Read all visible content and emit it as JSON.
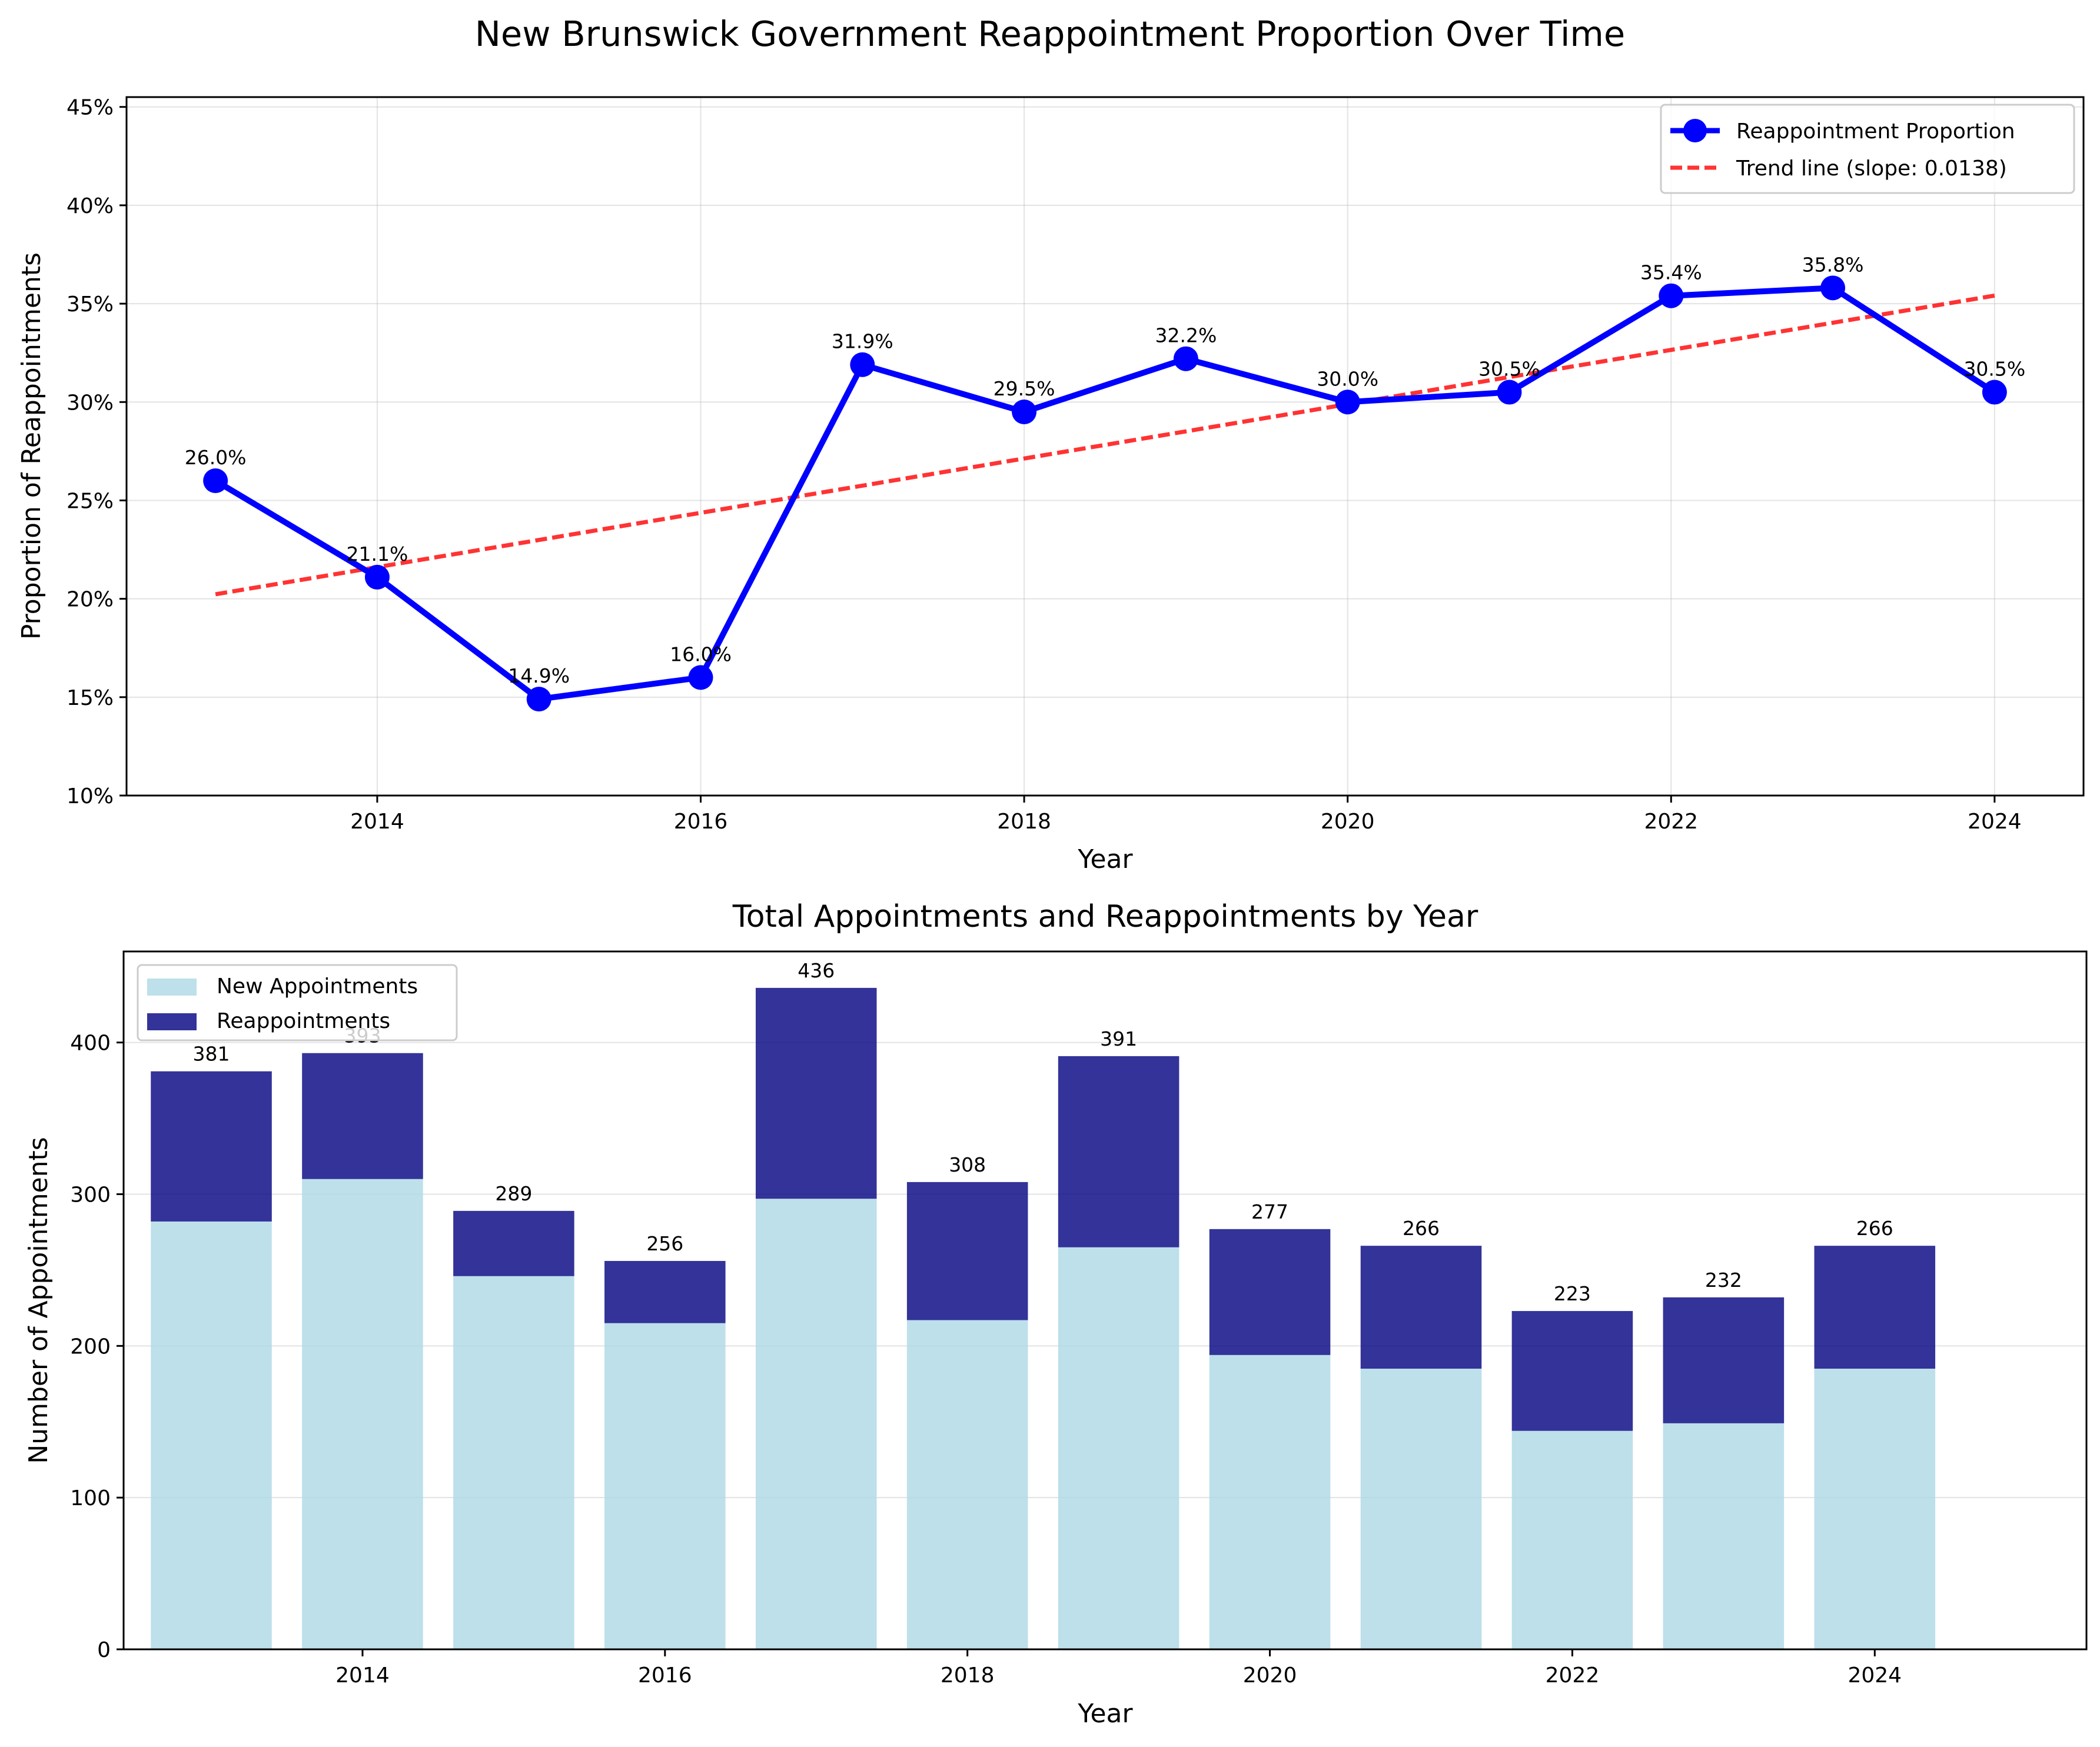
{
  "figure_title": "New Brunswick Government Reappointment Proportion Over Time",
  "chart_data": [
    {
      "type": "line",
      "title": "",
      "xlabel": "Year",
      "ylabel": "Proportion of Reappointments",
      "x": [
        2013,
        2014,
        2015,
        2016,
        2017,
        2018,
        2019,
        2020,
        2021,
        2022,
        2023,
        2024
      ],
      "xlim": [
        2012.45,
        2024.55
      ],
      "ylim": [
        0.1,
        0.455
      ],
      "xticks": [
        2014,
        2016,
        2018,
        2020,
        2022,
        2024
      ],
      "yticks": [
        0.1,
        0.15,
        0.2,
        0.25,
        0.3,
        0.35,
        0.4,
        0.45
      ],
      "ytick_labels": [
        "10%",
        "15%",
        "20%",
        "25%",
        "30%",
        "35%",
        "40%",
        "45%"
      ],
      "grid": true,
      "legend_position": "upper right",
      "series": [
        {
          "name": "Reappointment Proportion",
          "color": "#0000ff",
          "style": "solid-line-with-circle-markers",
          "values": [
            0.26,
            0.211,
            0.149,
            0.16,
            0.319,
            0.295,
            0.322,
            0.3,
            0.305,
            0.354,
            0.358,
            0.305
          ],
          "labels": [
            "26.0%",
            "21.1%",
            "14.9%",
            "16.0%",
            "31.9%",
            "29.5%",
            "32.2%",
            "30.0%",
            "30.5%",
            "35.4%",
            "35.8%",
            "30.5%"
          ]
        },
        {
          "name": "Trend line (slope: 0.0138)",
          "color": "#ff0000",
          "style": "dashed",
          "x": [
            2013,
            2024
          ],
          "values": [
            0.2023,
            0.3541
          ]
        }
      ]
    },
    {
      "type": "bar",
      "title": "Total Appointments and Reappointments by Year",
      "xlabel": "Year",
      "ylabel": "Number of Appointments",
      "x": [
        2013,
        2014,
        2015,
        2016,
        2017,
        2018,
        2019,
        2020,
        2021,
        2022,
        2023,
        2024
      ],
      "xlim": [
        2012.42,
        2025.4
      ],
      "ylim": [
        0,
        460
      ],
      "xticks": [
        2014,
        2016,
        2018,
        2020,
        2022,
        2024
      ],
      "yticks": [
        0,
        100,
        200,
        300,
        400
      ],
      "grid": true,
      "legend_position": "upper left",
      "stacked": true,
      "series": [
        {
          "name": "New Appointments",
          "color": "#add8e6",
          "values": [
            282,
            310,
            246,
            215,
            297,
            217,
            265,
            194,
            185,
            144,
            149,
            185
          ]
        },
        {
          "name": "Reappointments",
          "color": "#000080",
          "values": [
            99,
            83,
            43,
            41,
            139,
            91,
            126,
            83,
            81,
            79,
            83,
            81
          ]
        }
      ],
      "totals": [
        381,
        393,
        289,
        256,
        436,
        308,
        391,
        277,
        266,
        223,
        232,
        266
      ]
    }
  ]
}
